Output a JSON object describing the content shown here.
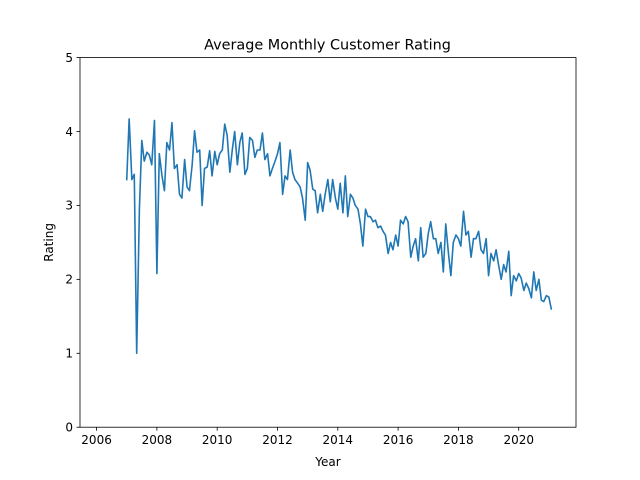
{
  "chart_data": {
    "type": "line",
    "title": "Average Monthly Customer Rating",
    "xlabel": "Year",
    "ylabel": "Rating",
    "xlim": [
      2005.45,
      2021.9
    ],
    "ylim": [
      0,
      5
    ],
    "x_ticks": [
      2006,
      2008,
      2010,
      2012,
      2014,
      2016,
      2018,
      2020
    ],
    "x_tick_labels": [
      "2006",
      "2008",
      "2010",
      "2012",
      "2014",
      "2016",
      "2018",
      "2020"
    ],
    "y_ticks": [
      0,
      1,
      2,
      3,
      4,
      5
    ],
    "y_tick_labels": [
      "0",
      "1",
      "2",
      "3",
      "4",
      "5"
    ],
    "grid": false,
    "series": [
      {
        "color": "#1f77b4",
        "x": [
          2007.0,
          2007.08,
          2007.17,
          2007.25,
          2007.33,
          2007.42,
          2007.5,
          2007.58,
          2007.67,
          2007.75,
          2007.83,
          2007.92,
          2008.0,
          2008.08,
          2008.17,
          2008.25,
          2008.33,
          2008.42,
          2008.5,
          2008.58,
          2008.67,
          2008.75,
          2008.83,
          2008.92,
          2009.0,
          2009.08,
          2009.17,
          2009.25,
          2009.33,
          2009.42,
          2009.5,
          2009.58,
          2009.67,
          2009.75,
          2009.83,
          2009.92,
          2010.0,
          2010.08,
          2010.17,
          2010.25,
          2010.33,
          2010.42,
          2010.5,
          2010.58,
          2010.67,
          2010.75,
          2010.83,
          2010.92,
          2011.0,
          2011.08,
          2011.17,
          2011.25,
          2011.33,
          2011.42,
          2011.5,
          2011.58,
          2011.67,
          2011.75,
          2011.83,
          2011.92,
          2012.0,
          2012.08,
          2012.17,
          2012.25,
          2012.33,
          2012.42,
          2012.5,
          2012.58,
          2012.67,
          2012.75,
          2012.83,
          2012.92,
          2013.0,
          2013.08,
          2013.17,
          2013.25,
          2013.33,
          2013.42,
          2013.5,
          2013.58,
          2013.67,
          2013.75,
          2013.83,
          2013.92,
          2014.0,
          2014.08,
          2014.17,
          2014.25,
          2014.33,
          2014.42,
          2014.5,
          2014.58,
          2014.67,
          2014.75,
          2014.83,
          2014.92,
          2015.0,
          2015.08,
          2015.17,
          2015.25,
          2015.33,
          2015.42,
          2015.5,
          2015.58,
          2015.67,
          2015.75,
          2015.83,
          2015.92,
          2016.0,
          2016.08,
          2016.17,
          2016.25,
          2016.33,
          2016.42,
          2016.5,
          2016.58,
          2016.67,
          2016.75,
          2016.83,
          2016.92,
          2017.0,
          2017.08,
          2017.17,
          2017.25,
          2017.33,
          2017.42,
          2017.5,
          2017.58,
          2017.67,
          2017.75,
          2017.83,
          2017.92,
          2018.0,
          2018.08,
          2018.17,
          2018.25,
          2018.33,
          2018.42,
          2018.5,
          2018.58,
          2018.67,
          2018.75,
          2018.83,
          2018.92,
          2019.0,
          2019.08,
          2019.17,
          2019.25,
          2019.33,
          2019.42,
          2019.5,
          2019.58,
          2019.67,
          2019.75,
          2019.83,
          2019.92,
          2020.0,
          2020.08,
          2020.17,
          2020.25,
          2020.33,
          2020.42,
          2020.5,
          2020.58,
          2020.67,
          2020.75,
          2020.83,
          2020.92,
          2021.0,
          2021.08
        ],
        "y": [
          3.35,
          4.17,
          3.35,
          3.42,
          1.0,
          2.95,
          3.88,
          3.6,
          3.72,
          3.68,
          3.55,
          4.15,
          2.08,
          3.7,
          3.4,
          3.2,
          3.85,
          3.75,
          4.12,
          3.5,
          3.55,
          3.15,
          3.1,
          3.62,
          3.25,
          3.2,
          3.55,
          4.01,
          3.72,
          3.75,
          3.0,
          3.5,
          3.52,
          3.74,
          3.4,
          3.73,
          3.55,
          3.7,
          3.75,
          4.1,
          3.95,
          3.45,
          3.75,
          4.0,
          3.55,
          3.85,
          3.98,
          3.42,
          3.5,
          3.92,
          3.88,
          3.65,
          3.75,
          3.75,
          3.98,
          3.62,
          3.7,
          3.4,
          3.5,
          3.6,
          3.7,
          3.85,
          3.15,
          3.4,
          3.35,
          3.75,
          3.45,
          3.35,
          3.3,
          3.25,
          3.1,
          2.8,
          3.58,
          3.48,
          3.22,
          3.2,
          2.9,
          3.15,
          2.92,
          3.15,
          3.35,
          3.05,
          3.35,
          3.1,
          2.95,
          3.3,
          2.9,
          3.4,
          2.85,
          3.15,
          3.1,
          3.0,
          2.95,
          2.75,
          2.45,
          2.95,
          2.85,
          2.85,
          2.78,
          2.8,
          2.7,
          2.72,
          2.65,
          2.6,
          2.35,
          2.5,
          2.4,
          2.6,
          2.45,
          2.8,
          2.75,
          2.85,
          2.78,
          2.3,
          2.45,
          2.55,
          2.25,
          2.7,
          2.3,
          2.35,
          2.62,
          2.78,
          2.55,
          2.55,
          2.35,
          2.5,
          2.1,
          2.75,
          2.35,
          2.05,
          2.5,
          2.6,
          2.55,
          2.45,
          2.92,
          2.6,
          2.65,
          2.3,
          2.55,
          2.55,
          2.65,
          2.4,
          2.35,
          2.55,
          2.05,
          2.35,
          2.25,
          2.4,
          2.2,
          2.0,
          2.2,
          2.1,
          2.38,
          1.78,
          2.05,
          1.98,
          2.08,
          2.02,
          1.85,
          1.95,
          1.88,
          1.75,
          2.1,
          1.85,
          2.0,
          1.72,
          1.7,
          1.78,
          1.76,
          1.6
        ]
      }
    ]
  }
}
